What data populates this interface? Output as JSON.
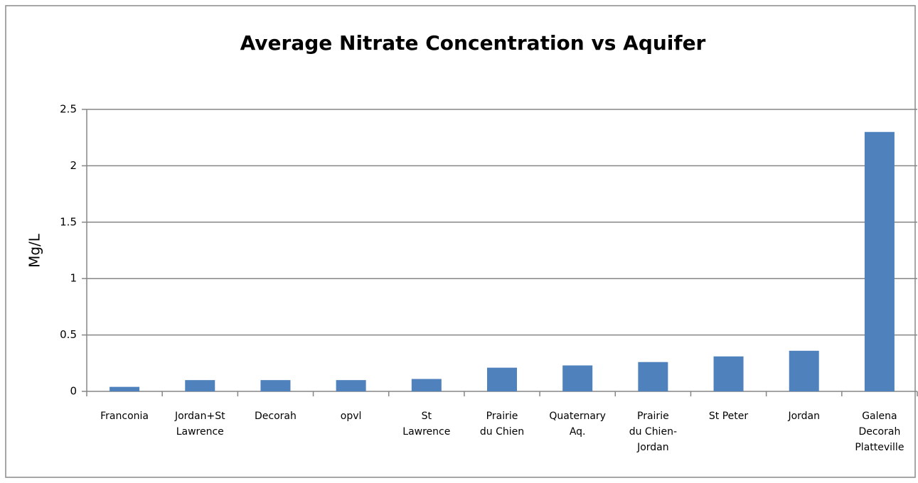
{
  "chart_data": {
    "type": "bar",
    "title": "Average Nitrate Concentration vs Aquifer",
    "y_label": "Mg/L",
    "categories": [
      "Franconia",
      "Jordan+St\nLawrence",
      "Decorah",
      "opvl",
      "St\nLawrence",
      "Prairie\ndu Chien",
      "Quaternary\nAq.",
      "Prairie\ndu Chien-\nJordan",
      "St Peter",
      "Jordan",
      "Galena\nDecorah\nPlatteville"
    ],
    "values": [
      0.04,
      0.1,
      0.1,
      0.1,
      0.11,
      0.21,
      0.23,
      0.26,
      0.31,
      0.36,
      2.3
    ],
    "color": "#4f81bd",
    "ylim": [
      0,
      2.5
    ],
    "yticks": [
      0,
      0.5,
      1,
      1.5,
      2,
      2.5
    ],
    "grid": true
  }
}
